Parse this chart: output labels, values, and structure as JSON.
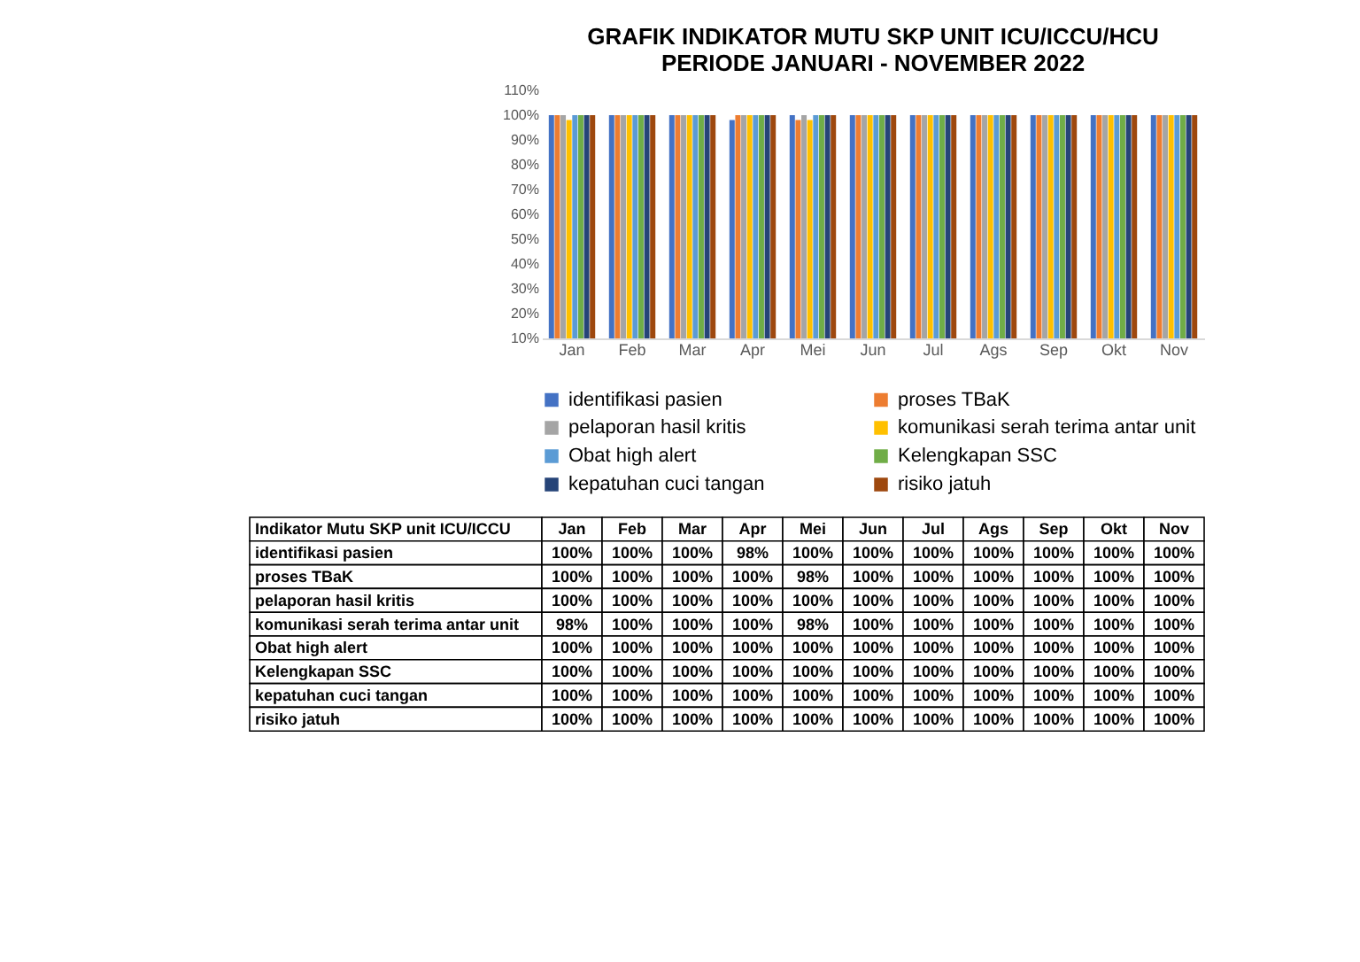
{
  "chart_data": {
    "type": "bar",
    "title": [
      "GRAFIK INDIKATOR MUTU SKP UNIT ICU/ICCU/HCU",
      "PERIODE JANUARI - NOVEMBER 2022"
    ],
    "categories": [
      "Jan",
      "Feb",
      "Mar",
      "Apr",
      "Mei",
      "Jun",
      "Jul",
      "Ags",
      "Sep",
      "Okt",
      "Nov"
    ],
    "ylim": [
      10,
      110
    ],
    "yticks": [
      {
        "value": 10,
        "label": "10%"
      },
      {
        "value": 20,
        "label": "20%"
      },
      {
        "value": 30,
        "label": "30%"
      },
      {
        "value": 40,
        "label": "40%"
      },
      {
        "value": 50,
        "label": "50%"
      },
      {
        "value": 60,
        "label": "60%"
      },
      {
        "value": 70,
        "label": "70%"
      },
      {
        "value": 80,
        "label": "80%"
      },
      {
        "value": 90,
        "label": "90%"
      },
      {
        "value": 100,
        "label": "100%"
      },
      {
        "value": 110,
        "label": "110%"
      }
    ],
    "grid": false,
    "legend": "bottom",
    "data_labels": true,
    "annotations": [
      "Indikator Mutu SKP unit ICU/ICCU"
    ],
    "series": [
      {
        "name": "identifikasi pasien",
        "color": "#4472c4",
        "values": [
          100,
          100,
          100,
          98,
          100,
          100,
          100,
          100,
          100,
          100,
          100
        ],
        "value_labels": [
          "100%",
          "100%",
          "100%",
          "98%",
          "100%",
          "100%",
          "100%",
          "100%",
          "100%",
          "100%",
          "100%"
        ]
      },
      {
        "name": "proses TBaK",
        "color": "#ed7d31",
        "values": [
          100,
          100,
          100,
          100,
          98,
          100,
          100,
          100,
          100,
          100,
          100
        ],
        "value_labels": [
          "100%",
          "100%",
          "100%",
          "100%",
          "98%",
          "100%",
          "100%",
          "100%",
          "100%",
          "100%",
          "100%"
        ]
      },
      {
        "name": "pelaporan hasil kritis",
        "color": "#a5a5a5",
        "values": [
          100,
          100,
          100,
          100,
          100,
          100,
          100,
          100,
          100,
          100,
          100
        ],
        "value_labels": [
          "100%",
          "100%",
          "100%",
          "100%",
          "100%",
          "100%",
          "100%",
          "100%",
          "100%",
          "100%",
          "100%"
        ]
      },
      {
        "name": "komunikasi serah terima antar unit",
        "color": "#ffc000",
        "values": [
          98,
          100,
          100,
          100,
          98,
          100,
          100,
          100,
          100,
          100,
          100
        ],
        "value_labels": [
          "98%",
          "100%",
          "100%",
          "100%",
          "98%",
          "100%",
          "100%",
          "100%",
          "100%",
          "100%",
          "100%"
        ]
      },
      {
        "name": "Obat high alert",
        "color": "#5b9bd5",
        "values": [
          100,
          100,
          100,
          100,
          100,
          100,
          100,
          100,
          100,
          100,
          100
        ],
        "value_labels": [
          "100%",
          "100%",
          "100%",
          "100%",
          "100%",
          "100%",
          "100%",
          "100%",
          "100%",
          "100%",
          "100%"
        ]
      },
      {
        "name": "Kelengkapan SSC",
        "color": "#70ad47",
        "values": [
          100,
          100,
          100,
          100,
          100,
          100,
          100,
          100,
          100,
          100,
          100
        ],
        "value_labels": [
          "100%",
          "100%",
          "100%",
          "100%",
          "100%",
          "100%",
          "100%",
          "100%",
          "100%",
          "100%",
          "100%"
        ]
      },
      {
        "name": "kepatuhan cuci tangan",
        "color": "#264478",
        "values": [
          100,
          100,
          100,
          100,
          100,
          100,
          100,
          100,
          100,
          100,
          100
        ],
        "value_labels": [
          "100%",
          "100%",
          "100%",
          "100%",
          "100%",
          "100%",
          "100%",
          "100%",
          "100%",
          "100%",
          "100%"
        ]
      },
      {
        "name": "risiko jatuh",
        "color": "#9e480e",
        "values": [
          100,
          100,
          100,
          100,
          100,
          100,
          100,
          100,
          100,
          100,
          100
        ],
        "value_labels": [
          "100%",
          "100%",
          "100%",
          "100%",
          "100%",
          "100%",
          "100%",
          "100%",
          "100%",
          "100%",
          "100%"
        ]
      }
    ]
  }
}
